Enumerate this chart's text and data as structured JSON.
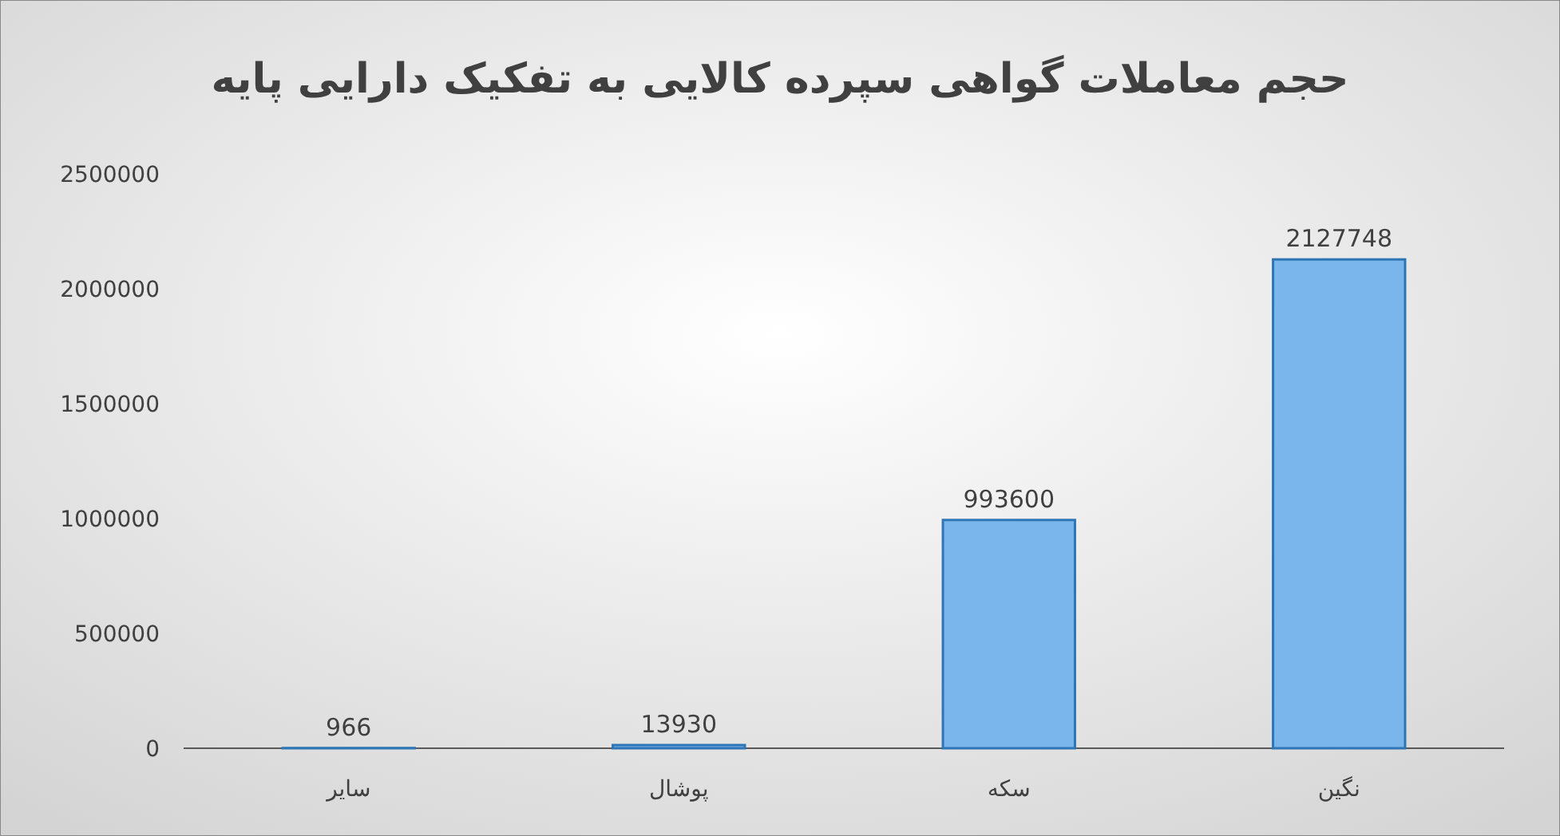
{
  "chart_data": {
    "type": "bar",
    "title": "حجم معاملات گواهی سپرده کالایی به تفکیک دارایی پایه",
    "categories": [
      "سایر",
      "پوشال",
      "سکه",
      "نگین"
    ],
    "values": [
      966,
      13930,
      993600,
      2127748
    ],
    "color": "#7ab6ec",
    "ylim": [
      0,
      2500000
    ],
    "yticks": [
      0,
      500000,
      1000000,
      1500000,
      2000000,
      2500000
    ],
    "grid": false,
    "data_labels": true
  }
}
